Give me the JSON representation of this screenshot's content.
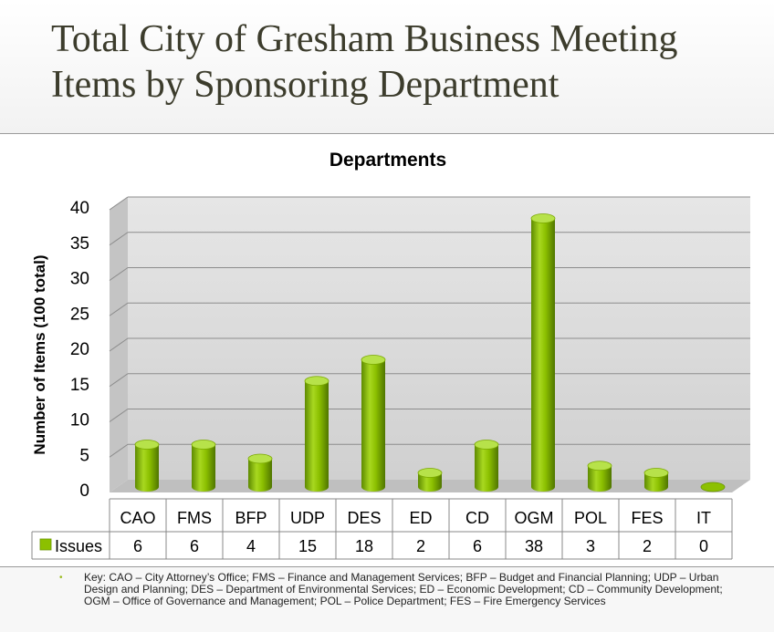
{
  "slide": {
    "title": "Total City of Gresham Business Meeting Items by Sponsoring Department",
    "key_text": "Key: CAO – City Attorney’s Office; FMS – Finance and Management Services; BFP – Budget and Financial Planning; UDP – Urban Design and Planning; DES – Department of Environmental Services; ED – Economic Development; CD – Community Development; OGM – Office of Governance and Management; POL – Police Department; FES – Fire Emergency Services"
  },
  "chart_data": {
    "type": "bar",
    "title": "Departments",
    "ylabel": "Number of Items (100 total)",
    "xlabel": "",
    "categories": [
      "CAO",
      "FMS",
      "BFP",
      "UDP",
      "DES",
      "ED",
      "CD",
      "OGM",
      "POL",
      "FES",
      "IT"
    ],
    "series": [
      {
        "name": "Issues",
        "values": [
          6,
          6,
          4,
          15,
          18,
          2,
          6,
          38,
          3,
          2,
          0
        ]
      }
    ],
    "ylim": [
      0,
      40
    ],
    "yticks": [
      0,
      5,
      10,
      15,
      20,
      25,
      30,
      35,
      40
    ],
    "grid": true,
    "legend": "data-table-left",
    "bar_shape": "cylinder",
    "colors": {
      "bar": "#8cc000",
      "bar_dark": "#5e8a00",
      "bar_top": "#b7e24a",
      "wall": "#d9d9d9",
      "floor": "#bfbfbf"
    }
  }
}
